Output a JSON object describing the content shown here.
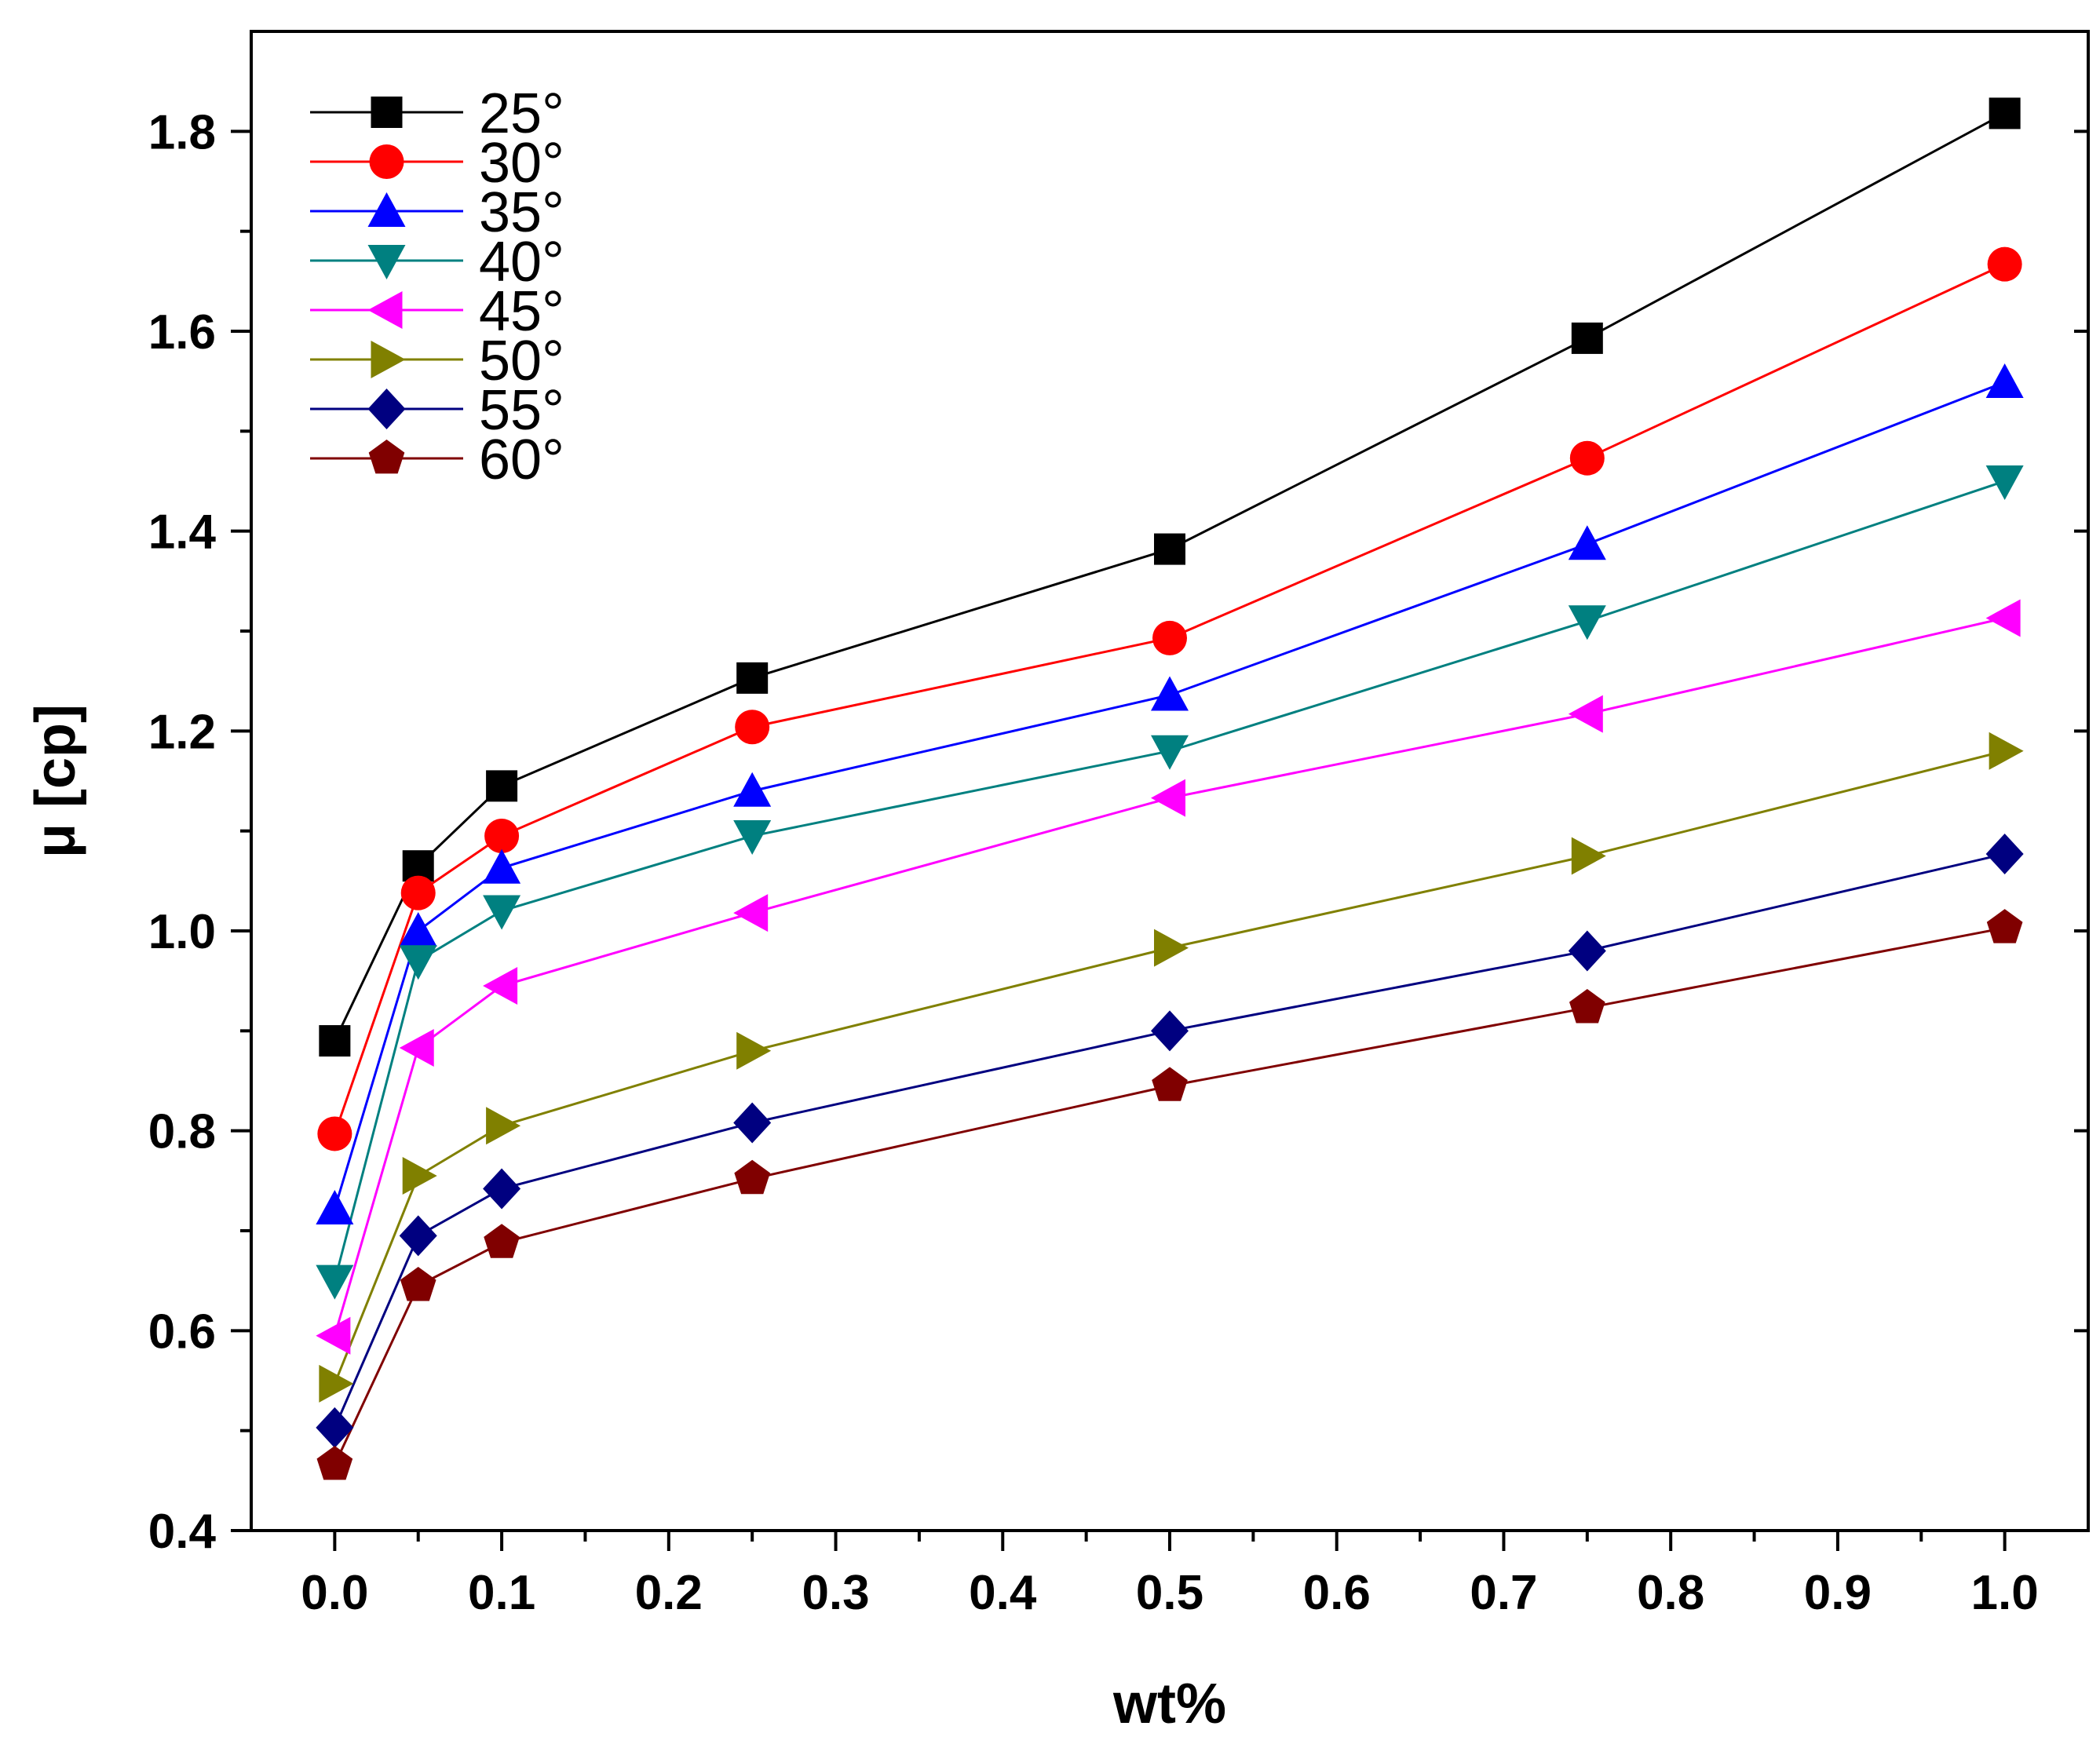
{
  "chart_data": {
    "type": "line",
    "title": "",
    "xlabel": "wt%",
    "ylabel": "μ [cp]",
    "xlim": [
      -0.05,
      1.05
    ],
    "ylim": [
      0.4,
      1.9
    ],
    "x": [
      0.0,
      0.05,
      0.1,
      0.25,
      0.5,
      0.75,
      1.0
    ],
    "x_ticks": [
      "0.0",
      "0.1",
      "0.2",
      "0.3",
      "0.4",
      "0.5",
      "0.6",
      "0.7",
      "0.8",
      "0.9",
      "1.0"
    ],
    "x_tick_values": [
      0.0,
      0.1,
      0.2,
      0.3,
      0.4,
      0.5,
      0.6,
      0.7,
      0.8,
      0.9,
      1.0
    ],
    "y_ticks": [
      "0.4",
      "0.6",
      "0.8",
      "1.0",
      "1.2",
      "1.4",
      "1.6",
      "1.8"
    ],
    "y_tick_values": [
      0.4,
      0.6,
      0.8,
      1.0,
      1.2,
      1.4,
      1.6,
      1.8
    ],
    "legend_position": "top-left",
    "grid": false,
    "series": [
      {
        "name": "25°",
        "color": "#000000",
        "marker": "square",
        "values": [
          0.89,
          1.065,
          1.145,
          1.253,
          1.382,
          1.593,
          1.818
        ]
      },
      {
        "name": "30°",
        "color": "#ff0000",
        "marker": "circle",
        "values": [
          0.797,
          1.038,
          1.095,
          1.204,
          1.293,
          1.473,
          1.667
        ]
      },
      {
        "name": "35°",
        "color": "#0000ff",
        "marker": "triangle-up",
        "values": [
          0.722,
          1.0,
          1.063,
          1.14,
          1.236,
          1.387,
          1.549
        ]
      },
      {
        "name": "40°",
        "color": "#008080",
        "marker": "triangle-down",
        "values": [
          0.65,
          0.97,
          1.02,
          1.095,
          1.18,
          1.31,
          1.45
        ]
      },
      {
        "name": "45°",
        "color": "#ff00ff",
        "marker": "triangle-left",
        "values": [
          0.595,
          0.883,
          0.945,
          1.018,
          1.133,
          1.217,
          1.313
        ]
      },
      {
        "name": "50°",
        "color": "#808000",
        "marker": "triangle-right",
        "values": [
          0.547,
          0.755,
          0.805,
          0.88,
          0.983,
          1.075,
          1.18
        ]
      },
      {
        "name": "55°",
        "color": "#000080",
        "marker": "diamond",
        "values": [
          0.503,
          0.695,
          0.742,
          0.808,
          0.9,
          0.98,
          1.077
        ]
      },
      {
        "name": "60°",
        "color": "#800000",
        "marker": "pentagon",
        "values": [
          0.466,
          0.645,
          0.688,
          0.752,
          0.845,
          0.923,
          1.003
        ]
      }
    ]
  }
}
